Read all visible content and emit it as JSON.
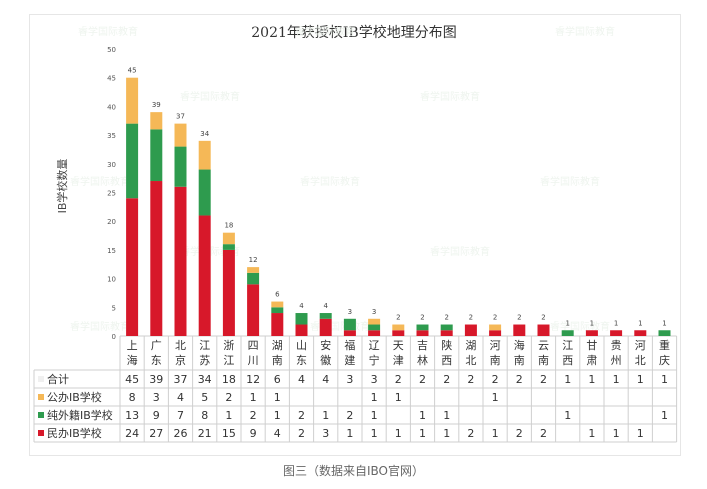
{
  "watermark": "睿学国际教育",
  "figure_caption": "图三（数据来自IBO官网）",
  "chart_data": {
    "type": "bar",
    "stacked": true,
    "title": "2021年获授权IB学校地理分布图",
    "xlabel": "",
    "ylabel": "IB学校数量",
    "ylim": [
      0,
      50
    ],
    "yticks": [
      0,
      5,
      10,
      15,
      20,
      25,
      30,
      35,
      40,
      45,
      50
    ],
    "grid": false,
    "categories": [
      "上海",
      "广东",
      "北京",
      "江苏",
      "浙江",
      "四川",
      "湖南",
      "山东",
      "安徽",
      "福建",
      "辽宁",
      "天津",
      "吉林",
      "陕西",
      "湖北",
      "河南",
      "海南",
      "云南",
      "江西",
      "甘肃",
      "贵州",
      "河北",
      "重庆"
    ],
    "series": [
      {
        "name": "民办IB学校",
        "color": "#d7182a",
        "values": [
          24,
          27,
          26,
          21,
          15,
          9,
          4,
          2,
          3,
          1,
          1,
          1,
          1,
          1,
          2,
          1,
          2,
          2,
          0,
          1,
          1,
          1,
          0
        ],
        "table_values": [
          "24",
          "27",
          "26",
          "21",
          "15",
          "9",
          "4",
          "2",
          "3",
          "1",
          "1",
          "1",
          "1",
          "1",
          "2",
          "1",
          "2",
          "2",
          "",
          "1",
          "1",
          "1",
          ""
        ]
      },
      {
        "name": "纯外籍IB学校",
        "color": "#2e9b4e",
        "values": [
          13,
          9,
          7,
          8,
          1,
          2,
          1,
          2,
          1,
          2,
          1,
          0,
          1,
          1,
          0,
          0,
          0,
          0,
          1,
          0,
          0,
          0,
          1
        ],
        "table_values": [
          "13",
          "9",
          "7",
          "8",
          "1",
          "2",
          "1",
          "2",
          "1",
          "2",
          "1",
          "",
          "1",
          "1",
          "",
          "",
          "",
          "",
          "1",
          "",
          "",
          "",
          "1"
        ]
      },
      {
        "name": "公办IB学校",
        "color": "#f5b857",
        "values": [
          8,
          3,
          4,
          5,
          2,
          1,
          1,
          0,
          0,
          0,
          1,
          1,
          0,
          0,
          0,
          1,
          0,
          0,
          0,
          0,
          0,
          0,
          0
        ],
        "table_values": [
          "8",
          "3",
          "4",
          "5",
          "2",
          "1",
          "1",
          "",
          "",
          "",
          "1",
          "1",
          "",
          "",
          "",
          "1",
          "",
          "",
          "",
          "",
          "",
          "",
          ""
        ]
      }
    ],
    "totals": [
      45,
      39,
      37,
      34,
      18,
      12,
      6,
      4,
      4,
      3,
      3,
      2,
      2,
      2,
      2,
      2,
      2,
      2,
      1,
      1,
      1,
      1,
      1
    ],
    "total_label": "合计",
    "table_rows_order": [
      "合计",
      "公办IB学校",
      "纯外籍IB学校",
      "民办IB学校"
    ]
  }
}
